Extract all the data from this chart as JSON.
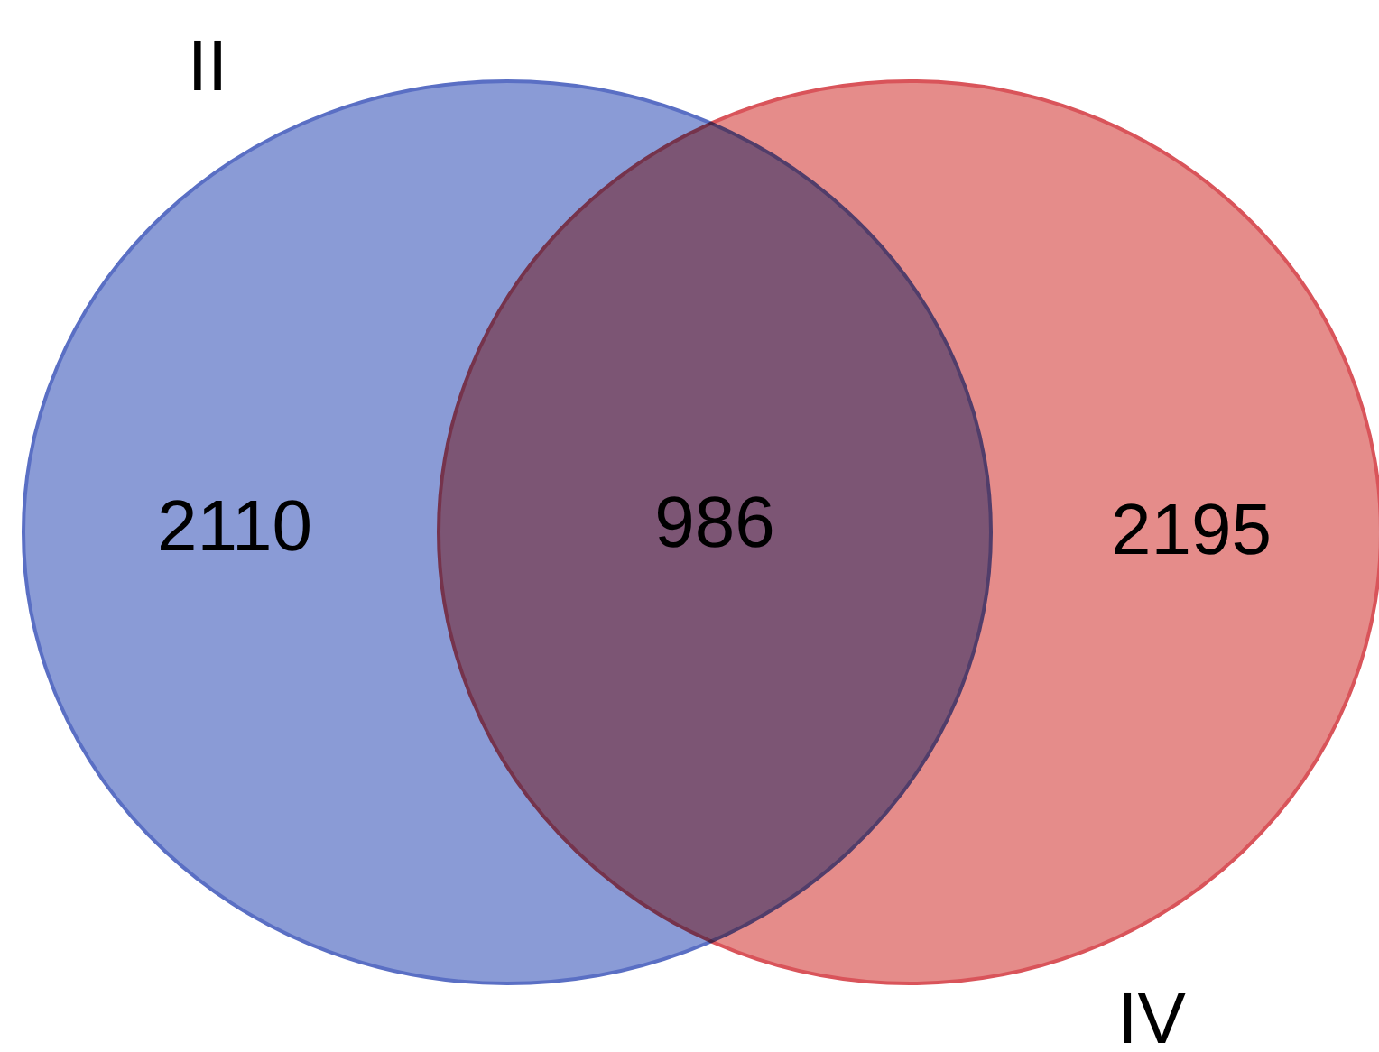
{
  "chart_data": {
    "type": "other",
    "categories": [
      "II",
      "IV"
    ],
    "values": [
      2110,
      2195
    ],
    "colors": [
      "#8a9bd6",
      "#e58c8a"
    ],
    "data_labels": true,
    "annotations": [
      "986"
    ]
  }
}
